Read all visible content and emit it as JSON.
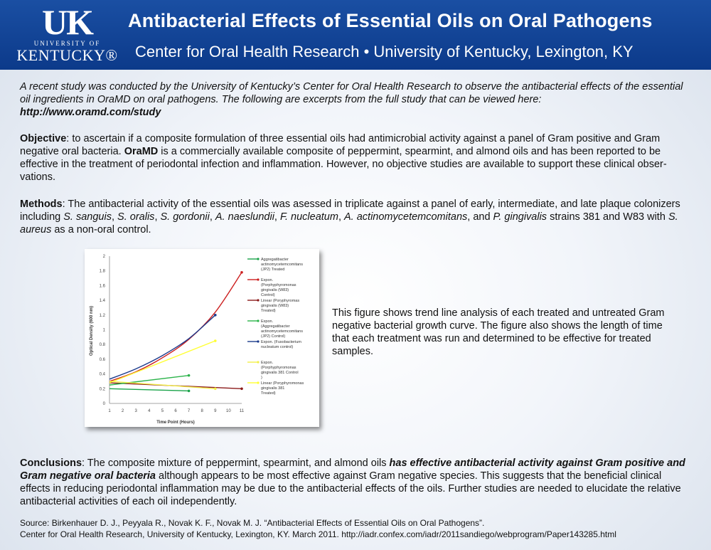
{
  "header": {
    "logo_uk": "UK",
    "logo_univ": "UNIVERSITY OF",
    "logo_ky": "KENTUCKY®",
    "title": "Antibacterial Effects of Essential Oils on Oral Pathogens",
    "subtitle": "Center for Oral Health Research • University of Kentucky, Lexington, KY",
    "colors": {
      "banner": "#1a4fa3",
      "text": "#ffffff"
    }
  },
  "intro": {
    "text": "A recent study was conducted by the University of Kentucky’s Center for Oral Health Research to observe the antibacterial effects of the essential oil ingredients in OraMD on oral pathogens.  The following are excerpts from the full study that can be viewed here:",
    "url": "http://www.oramd.com/study"
  },
  "objective": {
    "label": "Objective",
    "text1": ": to ascertain if a composite formulation of three essential oils had antimicrobial activity against a panel of Gram positive and Gram negative oral bacteria.  ",
    "brand": "OraMD",
    "text2": " is a commercially available composite of peppermint, spearmint, and almond oils and has been reported to be effective in the treatment of periodontal infection and inflammation.  However, no objective studies are available to support these clinical obser-vations."
  },
  "methods": {
    "label": "Methods",
    "text1": ": The antibacterial activity of the essential oils was asessed in triplicate against a panel of early, intermediate, and late plaque colonizers including ",
    "sp1": "S. sanguis",
    "sep1": ", ",
    "sp2": "S. oralis",
    "sep2": ", ",
    "sp3": "S. gordonii",
    "sep3": ", ",
    "sp4": "A. naeslundii",
    "sep4": ", ",
    "sp5": "F. nucleatum",
    "sep5": ", ",
    "sp6": "A. actinomycetemcomitans",
    "sep6": ", and ",
    "sp7": "P. gingivalis",
    "text2": " strains 381 and W83 with ",
    "sp8": "S. aureus",
    "text3": " as a non-oral control."
  },
  "caption": "This figure shows trend line analysis of each treated and untreated Gram negative bacterial growth curve.  The figure also shows the length of time that each treatment was run and determined to be effective for treated samples.",
  "conclusions": {
    "label": "Conclusions",
    "text1": ": The composite mixture of peppermint, spearmint, and almond oils ",
    "emphasis": "has effective antibacterial activity against Gram positive and Gram negative oral bacteria",
    "text2": " although appears to be most effective against Gram negative species.  This suggests that the beneficial clinical effects in reducing periodontal inflammation may be due to the antibacterial effects of the oils.  Further studies are needed to elucidate the relative antibacterial activities of each oil independently."
  },
  "source": {
    "line1": "Source: Birkenhauer D. J., Peyyala R., Novak K. F., Novak M. J.  “Antibacterial Effects of Essential Oils on Oral Pathogens”.",
    "line2": "Center for Oral Health Research, University of Kentucky, Lexington, KY.  March 2011.  http://iadr.confex.com/iadr/2011sandiego/webprogram/Paper143285.html"
  },
  "chart_data": {
    "type": "line",
    "xlabel": "Time Point (Hours)",
    "ylabel": "Optical Density (600 nm)",
    "xticks": [
      1,
      2,
      3,
      4,
      5,
      6,
      7,
      8,
      9,
      10,
      11
    ],
    "yticks": [
      "0",
      "0.2",
      "0.4",
      "0.6",
      "0.8",
      "1",
      "1.2",
      "1.4",
      "1.6",
      "1.8",
      "2"
    ],
    "xlim": [
      1,
      11
    ],
    "ylim": [
      0,
      2
    ],
    "legend_position": "right",
    "series": [
      {
        "name": "Aggregatibacter actinomycetemcomitans (JP2) Treated",
        "color": "#1aa34a",
        "trend": "line",
        "x": [
          1,
          7
        ],
        "y": [
          0.2,
          0.17
        ]
      },
      {
        "name": "Expon. (Porphyphyromonas gingivalis (W83) Control)",
        "color": "#cc1f1f",
        "trend": "curve",
        "x": [
          1,
          3,
          5,
          7,
          9,
          11
        ],
        "y": [
          0.3,
          0.43,
          0.62,
          0.87,
          1.24,
          1.78
        ]
      },
      {
        "name": "Linear (Poryphyromas gingivalis (W83) Treated)",
        "color": "#8b1a1a",
        "trend": "line",
        "x": [
          1,
          11
        ],
        "y": [
          0.28,
          0.2
        ]
      },
      {
        "name": "Expon. (Aggregatibacter actinomycetemcomitans (JP2) Control)",
        "color": "#2bb34a",
        "trend": "line",
        "x": [
          1,
          7
        ],
        "y": [
          0.25,
          0.38
        ]
      },
      {
        "name": "Expon. (Fusobacterium nucleatum control)",
        "color": "#1b3a8c",
        "trend": "curve",
        "x": [
          1,
          3,
          5,
          7,
          9
        ],
        "y": [
          0.33,
          0.47,
          0.65,
          0.88,
          1.2
        ]
      },
      {
        "name": "Expon. (Porphyphyromonas gingivalis 381 Control )",
        "color": "#f2f04a",
        "trend": "line",
        "x": [
          1,
          9
        ],
        "y": [
          0.3,
          0.2
        ]
      },
      {
        "name": "Linear (Poryphyromonas gingivalis 381 Treated)",
        "color": "#ffff33",
        "trend": "line",
        "x": [
          1,
          9
        ],
        "y": [
          0.28,
          0.85
        ]
      }
    ]
  }
}
